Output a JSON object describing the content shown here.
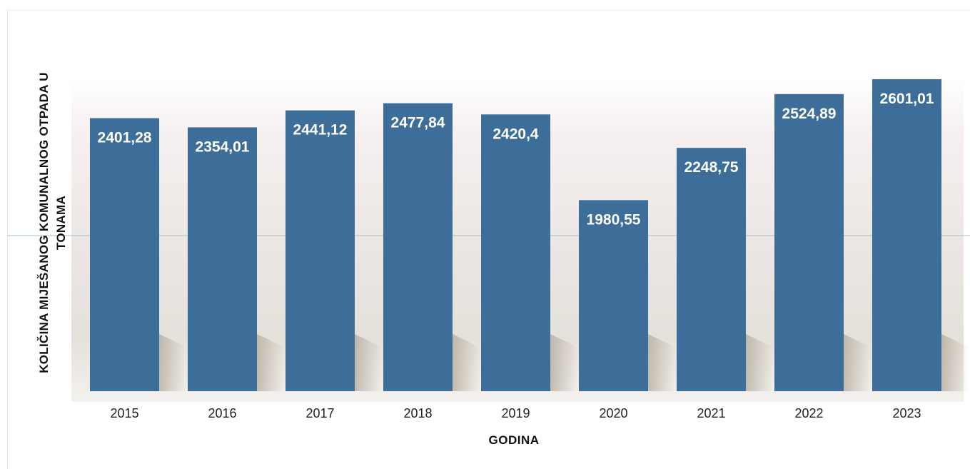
{
  "chart_data": {
    "type": "bar",
    "categories": [
      "2015",
      "2016",
      "2017",
      "2018",
      "2019",
      "2020",
      "2021",
      "2022",
      "2023"
    ],
    "values": [
      2401.28,
      2354.01,
      2441.12,
      2477.84,
      2420.4,
      1980.55,
      2248.75,
      2524.89,
      2601.01
    ],
    "value_labels": [
      "2401,28",
      "2354,01",
      "2441,12",
      "2477,84",
      "2420,4",
      "1980,55",
      "2248,75",
      "2524,89",
      "2601,01"
    ],
    "xlabel": "GODINA",
    "ylabel_lines": [
      "KOLIČINA MIJEŠANOG KOMUNALNOG OTPADA U",
      "TONAMA"
    ],
    "bar_color": "#3d6d99",
    "grid": false,
    "legend": "none"
  }
}
